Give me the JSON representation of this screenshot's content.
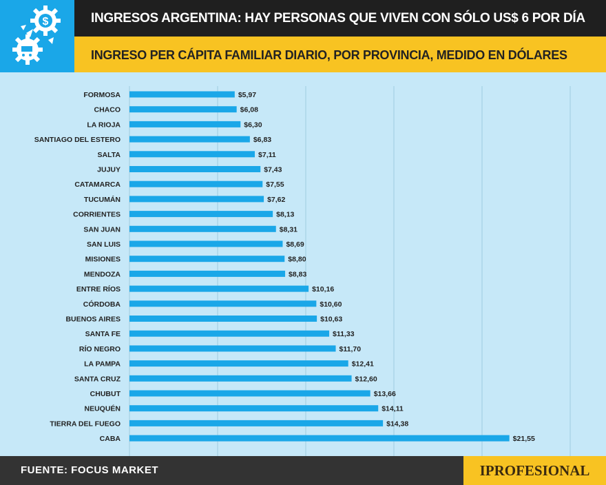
{
  "header": {
    "title": "INGRESOS ARGENTINA: HAY PERSONAS QUE VIVEN CON SÓLO US$ 6 POR DÍA",
    "subtitle": "INGRESO PER CÁPITA FAMILIAR DIARIO, POR PROVINCIA, MEDIDO EN DÓLARES",
    "logo_icon": "gears-dollar-cart-icon"
  },
  "footer": {
    "source": "FUENTE: FOCUS MARKET",
    "brand": "IPROFESIONAL"
  },
  "colors": {
    "bar": "#1aa7e8",
    "background": "#c6e8f8",
    "title_band": "#1f1f1f",
    "subtitle_band": "#f8c322"
  },
  "chart_data": {
    "type": "bar",
    "orientation": "horizontal",
    "categories": [
      "FORMOSA",
      "CHACO",
      "LA RIOJA",
      "SANTIAGO DEL ESTERO",
      "SALTA",
      "JUJUY",
      "CATAMARCA",
      "TUCUMÁN",
      "CORRIENTES",
      "SAN JUAN",
      "SAN LUIS",
      "MISIONES",
      "MENDOZA",
      "ENTRE RÍOS",
      "CÓRDOBA",
      "BUENOS AIRES",
      "SANTA FE",
      "RÍO NEGRO",
      "LA PAMPA",
      "SANTA CRUZ",
      "CHUBUT",
      "NEUQUÉN",
      "TIERRA DEL FUEGO",
      "CABA"
    ],
    "values": [
      5.97,
      6.08,
      6.3,
      6.83,
      7.11,
      7.43,
      7.55,
      7.62,
      8.13,
      8.31,
      8.69,
      8.8,
      8.83,
      10.16,
      10.6,
      10.63,
      11.33,
      11.7,
      12.41,
      12.6,
      13.66,
      14.11,
      14.38,
      21.55
    ],
    "data_labels": [
      "$5,97",
      "$6,08",
      "$6,30",
      "$6,83",
      "$7,11",
      "$7,43",
      "$7,55",
      "$7,62",
      "$8,13",
      "$8,31",
      "$8,69",
      "$8,80",
      "$8,83",
      "$10,16",
      "$10,60",
      "$10,63",
      "$11,33",
      "$11,70",
      "$12,41",
      "$12,60",
      "$13,66",
      "$14,11",
      "$14,38",
      "$21,55"
    ],
    "xlim": [
      0,
      25
    ],
    "grid": true,
    "grid_step": 5
  }
}
